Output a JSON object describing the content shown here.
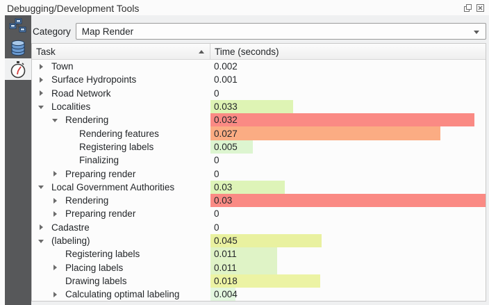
{
  "window": {
    "title": "Debugging/Development Tools"
  },
  "titlebar": {
    "buttons": [
      {
        "name": "float-button",
        "icon": "float-icon"
      },
      {
        "name": "close-button",
        "icon": "close-icon"
      }
    ]
  },
  "sidebar": {
    "tabs": [
      {
        "name": "network-tab",
        "icon": "network-icon",
        "selected": false
      },
      {
        "name": "database-tab",
        "icon": "database-icon",
        "selected": false
      },
      {
        "name": "profiler-tab",
        "icon": "stopwatch-icon",
        "selected": true
      }
    ]
  },
  "toolbar": {
    "category_label": "Category",
    "category_value": "Map Render"
  },
  "table": {
    "columns": [
      {
        "label": "Task",
        "sort": "ascending"
      },
      {
        "label": "Time (seconds)",
        "sort": null
      }
    ],
    "rows": [
      {
        "label": "Town",
        "level": 1,
        "arrow": "collapsed",
        "value": "0.002",
        "bar_pct": 0,
        "bar_color": null
      },
      {
        "label": "Surface Hydropoints",
        "level": 1,
        "arrow": "collapsed",
        "value": "0.001",
        "bar_pct": 0,
        "bar_color": null
      },
      {
        "label": "Road Network",
        "level": 1,
        "arrow": "collapsed",
        "value": "0",
        "bar_pct": 0,
        "bar_color": null
      },
      {
        "label": "Localities",
        "level": 1,
        "arrow": "expanded",
        "value": "0.033",
        "bar_pct": 30,
        "bar_color": "#def4b4"
      },
      {
        "label": "Rendering",
        "level": 2,
        "arrow": "expanded",
        "value": "0.032",
        "bar_pct": 96,
        "bar_color": "#fa8a84"
      },
      {
        "label": "Rendering features",
        "level": 3,
        "arrow": "none",
        "value": "0.027",
        "bar_pct": 83.5,
        "bar_color": "#fbac83"
      },
      {
        "label": "Registering labels",
        "level": 3,
        "arrow": "none",
        "value": "0.005",
        "bar_pct": 15.5,
        "bar_color": "#ddf5d0"
      },
      {
        "label": "Finalizing",
        "level": 3,
        "arrow": "none",
        "value": "0",
        "bar_pct": 0,
        "bar_color": null
      },
      {
        "label": "Preparing render",
        "level": 2,
        "arrow": "collapsed",
        "value": "0",
        "bar_pct": 0,
        "bar_color": null
      },
      {
        "label": "Local Government Authorities",
        "level": 1,
        "arrow": "expanded",
        "value": "0.03",
        "bar_pct": 27,
        "bar_color": "#def4b8"
      },
      {
        "label": "Rendering",
        "level": 2,
        "arrow": "collapsed",
        "value": "0.03",
        "bar_pct": 100,
        "bar_color": "#fa8a84"
      },
      {
        "label": "Preparing render",
        "level": 2,
        "arrow": "collapsed",
        "value": "0",
        "bar_pct": 0,
        "bar_color": null
      },
      {
        "label": "Cadastre",
        "level": 1,
        "arrow": "collapsed",
        "value": "0",
        "bar_pct": 0,
        "bar_color": null
      },
      {
        "label": "(labeling)",
        "level": 1,
        "arrow": "expanded",
        "value": "0.045",
        "bar_pct": 40.5,
        "bar_color": "#e9f1a0"
      },
      {
        "label": "Registering labels",
        "level": 2,
        "arrow": "none",
        "value": "0.011",
        "bar_pct": 24.3,
        "bar_color": "#dff3c6"
      },
      {
        "label": "Placing labels",
        "level": 2,
        "arrow": "collapsed",
        "value": "0.011",
        "bar_pct": 24.3,
        "bar_color": "#dff3c6"
      },
      {
        "label": "Drawing labels",
        "level": 2,
        "arrow": "none",
        "value": "0.018",
        "bar_pct": 40,
        "bar_color": "#ecf3a4"
      },
      {
        "label": "Calculating optimal labeling",
        "level": 2,
        "arrow": "collapsed",
        "value": "0.004",
        "bar_pct": 9,
        "bar_color": "#e3f7df"
      }
    ]
  },
  "colors": {
    "sidebar_bg": "#57585a",
    "panel_bg": "#eff0f1",
    "table_bg": "#fcfcfc",
    "bar_high": "#fa8a84",
    "bar_mid": "#ecf3a4",
    "bar_low": "#ddf5d0"
  }
}
